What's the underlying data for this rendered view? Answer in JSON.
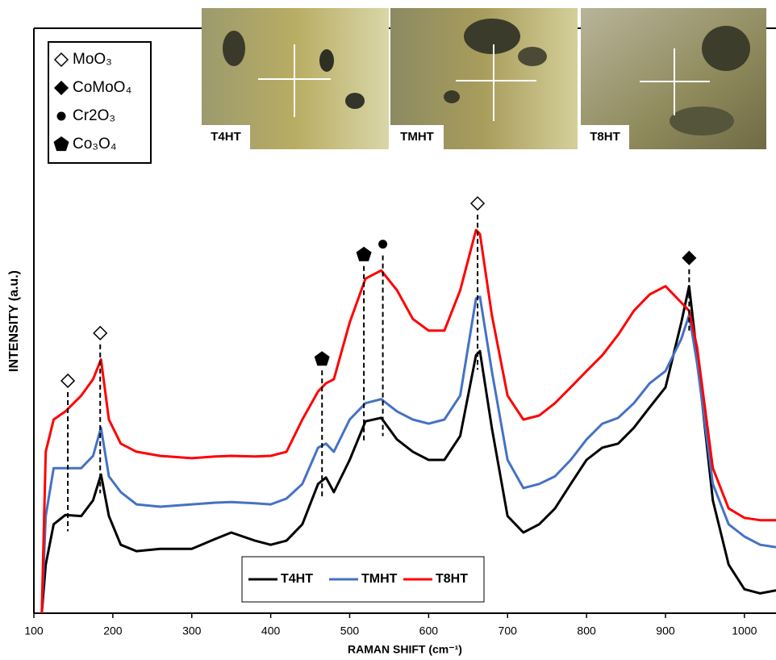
{
  "chart_data": {
    "type": "line",
    "xlabel": "RAMAN SHIFT (cm⁻¹)",
    "ylabel": "INTENSITY (a.u.)",
    "xlim": [
      100,
      1040
    ],
    "ylim": [
      0,
      100
    ],
    "xticks": [
      100,
      200,
      300,
      400,
      500,
      600,
      700,
      800,
      900,
      1000
    ],
    "x": [
      110,
      115,
      125,
      140,
      160,
      175,
      185,
      195,
      210,
      230,
      260,
      300,
      330,
      350,
      380,
      400,
      420,
      440,
      460,
      470,
      480,
      500,
      520,
      540,
      560,
      580,
      600,
      620,
      640,
      660,
      665,
      680,
      700,
      720,
      740,
      760,
      780,
      800,
      820,
      840,
      860,
      880,
      900,
      920,
      930,
      940,
      960,
      980,
      1000,
      1020,
      1040
    ],
    "series": [
      {
        "name": "T4HT",
        "color": "#000000",
        "values": [
          0,
          8.3,
          15.2,
          16.8,
          16.6,
          19.3,
          23.7,
          16.6,
          11.7,
          10.6,
          11.0,
          11.0,
          12.7,
          13.8,
          12.4,
          11.7,
          12.4,
          15.2,
          22.1,
          23.2,
          20.7,
          26.2,
          32.8,
          33.4,
          29.7,
          27.6,
          26.2,
          26.2,
          30.3,
          44.1,
          44.8,
          31.7,
          16.6,
          13.8,
          15.2,
          17.9,
          22.1,
          26.2,
          28.3,
          29.0,
          31.7,
          35.2,
          38.6,
          49.7,
          55.9,
          44.1,
          19.3,
          8.3,
          4.1,
          3.4,
          3.9
        ]
      },
      {
        "name": "TMHT",
        "color": "#4472c4",
        "values": [
          0,
          16.6,
          24.8,
          24.8,
          24.8,
          26.9,
          31.7,
          23.4,
          20.7,
          18.6,
          18.2,
          18.6,
          18.9,
          19.0,
          18.8,
          18.6,
          19.6,
          22.1,
          28.3,
          29.0,
          27.6,
          33.1,
          35.9,
          36.6,
          34.5,
          33.1,
          32.4,
          33.1,
          37.2,
          53.8,
          54.1,
          41.4,
          26.2,
          21.4,
          22.1,
          23.4,
          26.2,
          29.7,
          32.4,
          33.4,
          35.9,
          39.3,
          41.4,
          46.9,
          51.0,
          42.8,
          22.1,
          15.2,
          13.1,
          11.7,
          11.3
        ]
      },
      {
        "name": "T8HT",
        "color": "#ff0000",
        "values": [
          0,
          27.6,
          33.1,
          34.5,
          37.2,
          40.0,
          43.4,
          33.1,
          29.0,
          27.6,
          26.9,
          26.5,
          26.8,
          26.9,
          26.8,
          26.9,
          27.6,
          33.1,
          37.9,
          39.3,
          40.0,
          49.7,
          57.2,
          58.6,
          55.2,
          50.3,
          48.3,
          48.3,
          55.2,
          65.5,
          64.8,
          51.0,
          37.2,
          33.1,
          33.8,
          35.9,
          38.6,
          41.4,
          44.1,
          47.6,
          51.7,
          54.5,
          55.9,
          53.1,
          51.7,
          45.5,
          24.8,
          17.9,
          16.3,
          15.9,
          15.9
        ]
      }
    ],
    "phases": [
      {
        "label": "MoO₃",
        "marker": "diamond-open"
      },
      {
        "label": "CoMoO₄",
        "marker": "diamond"
      },
      {
        "label": "Cr2O₃",
        "marker": "dot"
      },
      {
        "label": "Co₃O₄",
        "marker": "pentagon"
      }
    ],
    "peaks": [
      {
        "x": 143,
        "phase": 0
      },
      {
        "x": 184,
        "phase": 0
      },
      {
        "x": 465,
        "phase": 3
      },
      {
        "x": 518,
        "phase": 3
      },
      {
        "x": 542,
        "phase": 2
      },
      {
        "x": 662,
        "phase": 0
      },
      {
        "x": 930,
        "phase": 1
      }
    ]
  },
  "insets": [
    {
      "label": "T4HT"
    },
    {
      "label": "TMHT"
    },
    {
      "label": "T8HT"
    }
  ]
}
